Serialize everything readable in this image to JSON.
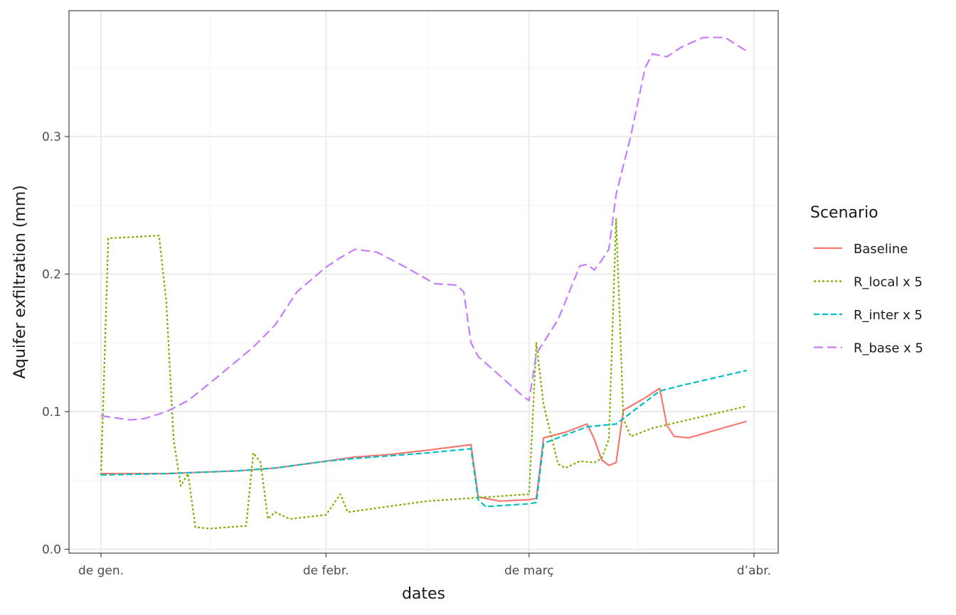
{
  "chart_data": {
    "type": "line",
    "xlabel": "dates",
    "ylabel": "Aquifer exfiltration (mm)",
    "x_axis": {
      "start": "2021-01-01",
      "end": "2021-04-01",
      "ticks": [
        {
          "date": "2021-01-01",
          "label": "de gen."
        },
        {
          "date": "2021-02-01",
          "label": "de febr."
        },
        {
          "date": "2021-03-01",
          "label": "de març"
        },
        {
          "date": "2021-04-01",
          "label": "d’abr."
        }
      ],
      "minor_ticks": [
        "2021-01-16",
        "2021-02-15",
        "2021-03-16"
      ]
    },
    "y_axis": {
      "min": 0.0,
      "max": 0.38,
      "ticks": [
        {
          "value": 0.0,
          "label": "0.0"
        },
        {
          "value": 0.1,
          "label": "0.1"
        },
        {
          "value": 0.2,
          "label": "0.2"
        },
        {
          "value": 0.3,
          "label": "0.3"
        }
      ],
      "minor_ticks": [
        0.05,
        0.15,
        0.25,
        0.35
      ]
    },
    "grid": true,
    "legend": {
      "title": "Scenario",
      "position": "right"
    },
    "series": [
      {
        "name": "Baseline",
        "color": "#F8766D",
        "dash": "solid",
        "points": [
          [
            "2021-01-01",
            0.055
          ],
          [
            "2021-01-10",
            0.055
          ],
          [
            "2021-01-20",
            0.057
          ],
          [
            "2021-01-25",
            0.059
          ],
          [
            "2021-02-01",
            0.064
          ],
          [
            "2021-02-05",
            0.067
          ],
          [
            "2021-02-10",
            0.069
          ],
          [
            "2021-02-15",
            0.072
          ],
          [
            "2021-02-18",
            0.074
          ],
          [
            "2021-02-21",
            0.076
          ],
          [
            "2021-02-22",
            0.038
          ],
          [
            "2021-02-25",
            0.035
          ],
          [
            "2021-03-01",
            0.036
          ],
          [
            "2021-03-02",
            0.037
          ],
          [
            "2021-03-03",
            0.081
          ],
          [
            "2021-03-06",
            0.085
          ],
          [
            "2021-03-09",
            0.091
          ],
          [
            "2021-03-10",
            0.08
          ],
          [
            "2021-03-11",
            0.065
          ],
          [
            "2021-03-12",
            0.061
          ],
          [
            "2021-03-13",
            0.063
          ],
          [
            "2021-03-14",
            0.101
          ],
          [
            "2021-03-17",
            0.11
          ],
          [
            "2021-03-19",
            0.117
          ],
          [
            "2021-03-20",
            0.09
          ],
          [
            "2021-03-21",
            0.082
          ],
          [
            "2021-03-23",
            0.081
          ],
          [
            "2021-03-31",
            0.093
          ]
        ]
      },
      {
        "name": "R_local x 5",
        "color": "#7CAE00",
        "dash": "dotted",
        "points": [
          [
            "2021-01-01",
            0.054
          ],
          [
            "2021-01-02",
            0.226
          ],
          [
            "2021-01-09",
            0.228
          ],
          [
            "2021-01-10",
            0.18
          ],
          [
            "2021-01-11",
            0.08
          ],
          [
            "2021-01-12",
            0.046
          ],
          [
            "2021-01-13",
            0.055
          ],
          [
            "2021-01-14",
            0.016
          ],
          [
            "2021-01-16",
            0.015
          ],
          [
            "2021-01-21",
            0.017
          ],
          [
            "2021-01-22",
            0.07
          ],
          [
            "2021-01-23",
            0.063
          ],
          [
            "2021-01-24",
            0.022
          ],
          [
            "2021-01-25",
            0.027
          ],
          [
            "2021-01-27",
            0.022
          ],
          [
            "2021-02-01",
            0.025
          ],
          [
            "2021-02-03",
            0.04
          ],
          [
            "2021-02-04",
            0.027
          ],
          [
            "2021-02-15",
            0.035
          ],
          [
            "2021-03-01",
            0.04
          ],
          [
            "2021-03-02",
            0.15
          ],
          [
            "2021-03-03",
            0.105
          ],
          [
            "2021-03-05",
            0.062
          ],
          [
            "2021-03-06",
            0.059
          ],
          [
            "2021-03-08",
            0.064
          ],
          [
            "2021-03-10",
            0.063
          ],
          [
            "2021-03-11",
            0.066
          ],
          [
            "2021-03-12",
            0.08
          ],
          [
            "2021-03-13",
            0.24
          ],
          [
            "2021-03-14",
            0.095
          ],
          [
            "2021-03-15",
            0.082
          ],
          [
            "2021-03-18",
            0.088
          ],
          [
            "2021-03-31",
            0.104
          ]
        ]
      },
      {
        "name": "R_inter x 5",
        "color": "#00BFC4",
        "dash": "dashed",
        "points": [
          [
            "2021-01-01",
            0.054
          ],
          [
            "2021-01-10",
            0.055
          ],
          [
            "2021-01-20",
            0.057
          ],
          [
            "2021-01-25",
            0.059
          ],
          [
            "2021-02-01",
            0.064
          ],
          [
            "2021-02-05",
            0.066
          ],
          [
            "2021-02-15",
            0.07
          ],
          [
            "2021-02-21",
            0.073
          ],
          [
            "2021-02-22",
            0.036
          ],
          [
            "2021-02-23",
            0.031
          ],
          [
            "2021-03-01",
            0.033
          ],
          [
            "2021-03-02",
            0.034
          ],
          [
            "2021-03-03",
            0.077
          ],
          [
            "2021-03-06",
            0.083
          ],
          [
            "2021-03-09",
            0.089
          ],
          [
            "2021-03-13",
            0.091
          ],
          [
            "2021-03-16",
            0.103
          ],
          [
            "2021-03-19",
            0.115
          ],
          [
            "2021-03-22",
            0.119
          ],
          [
            "2021-03-31",
            0.13
          ]
        ]
      },
      {
        "name": "R_base x 5",
        "color": "#C77CFF",
        "dash": "longdash",
        "points": [
          [
            "2021-01-01",
            0.097
          ],
          [
            "2021-01-05",
            0.094
          ],
          [
            "2021-01-07",
            0.095
          ],
          [
            "2021-01-10",
            0.1
          ],
          [
            "2021-01-13",
            0.108
          ],
          [
            "2021-01-17",
            0.125
          ],
          [
            "2021-01-22",
            0.147
          ],
          [
            "2021-01-25",
            0.163
          ],
          [
            "2021-01-28",
            0.187
          ],
          [
            "2021-02-01",
            0.205
          ],
          [
            "2021-02-03",
            0.212
          ],
          [
            "2021-02-05",
            0.218
          ],
          [
            "2021-02-08",
            0.216
          ],
          [
            "2021-02-12",
            0.205
          ],
          [
            "2021-02-16",
            0.193
          ],
          [
            "2021-02-19",
            0.192
          ],
          [
            "2021-02-20",
            0.187
          ],
          [
            "2021-02-21",
            0.15
          ],
          [
            "2021-02-22",
            0.14
          ],
          [
            "2021-02-28",
            0.112
          ],
          [
            "2021-03-01",
            0.108
          ],
          [
            "2021-03-02",
            0.142
          ],
          [
            "2021-03-05",
            0.167
          ],
          [
            "2021-03-08",
            0.206
          ],
          [
            "2021-03-09",
            0.207
          ],
          [
            "2021-03-10",
            0.203
          ],
          [
            "2021-03-11",
            0.21
          ],
          [
            "2021-03-12",
            0.218
          ],
          [
            "2021-03-13",
            0.258
          ],
          [
            "2021-03-15",
            0.3
          ],
          [
            "2021-03-17",
            0.35
          ],
          [
            "2021-03-18",
            0.36
          ],
          [
            "2021-03-20",
            0.358
          ],
          [
            "2021-03-22",
            0.365
          ],
          [
            "2021-03-25",
            0.372
          ],
          [
            "2021-03-28",
            0.372
          ],
          [
            "2021-03-31",
            0.362
          ]
        ]
      }
    ]
  }
}
